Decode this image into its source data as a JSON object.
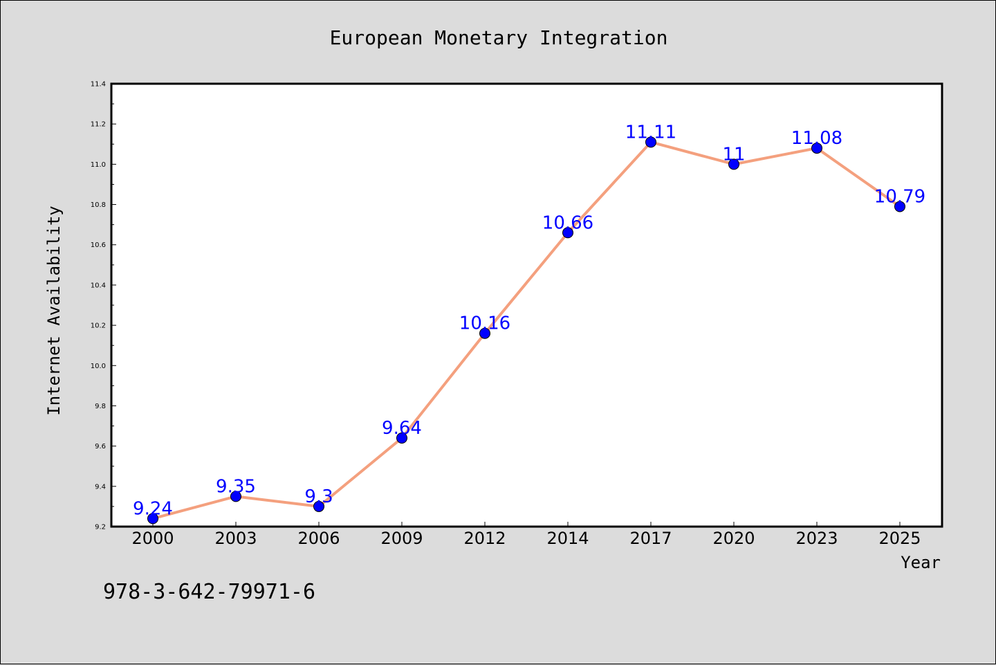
{
  "footer_text": "978-3-642-79971-6",
  "chart_data": {
    "type": "line",
    "title": "European Monetary Integration",
    "xlabel": "Year",
    "ylabel": "Internet Availability",
    "categories": [
      "2000",
      "2003",
      "2006",
      "2009",
      "2012",
      "2014",
      "2017",
      "2020",
      "2023",
      "2025"
    ],
    "series": [
      {
        "values": [
          9.24,
          9.35,
          9.3,
          9.64,
          10.16,
          10.66,
          11.11,
          11.0,
          11.08,
          10.79
        ],
        "data_labels": [
          "9.24",
          "9.35",
          "9.3",
          "9.64",
          "10.16",
          "10.66",
          "11.11",
          "11",
          "11.08",
          "10.79"
        ]
      }
    ],
    "ylim": [
      9.2,
      11.4
    ],
    "y_ticks": [
      "9.2",
      "9.4",
      "9.6",
      "9.8",
      "10.0",
      "10.2",
      "10.4",
      "10.6",
      "10.8",
      "11.0",
      "11.2",
      "11.4"
    ],
    "grid": false,
    "colors": {
      "background": "#dcdcdc",
      "plot_background": "#ffffff",
      "line": "#f4a07e",
      "marker": "#0000ff",
      "data_label": "#0000ff"
    }
  }
}
